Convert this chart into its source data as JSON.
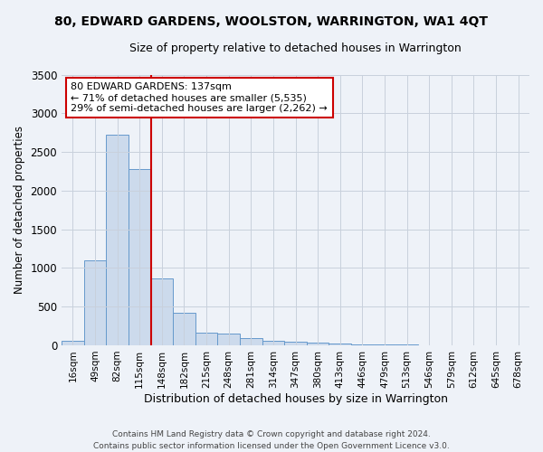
{
  "title": "80, EDWARD GARDENS, WOOLSTON, WARRINGTON, WA1 4QT",
  "subtitle": "Size of property relative to detached houses in Warrington",
  "xlabel": "Distribution of detached houses by size in Warrington",
  "ylabel": "Number of detached properties",
  "categories": [
    "16sqm",
    "49sqm",
    "82sqm",
    "115sqm",
    "148sqm",
    "182sqm",
    "215sqm",
    "248sqm",
    "281sqm",
    "314sqm",
    "347sqm",
    "380sqm",
    "413sqm",
    "446sqm",
    "479sqm",
    "513sqm",
    "546sqm",
    "579sqm",
    "612sqm",
    "645sqm",
    "678sqm"
  ],
  "values": [
    55,
    1100,
    2720,
    2280,
    870,
    420,
    160,
    155,
    90,
    60,
    45,
    40,
    25,
    15,
    10,
    8,
    5,
    5,
    3,
    3,
    3
  ],
  "bar_color": "#ccdaec",
  "bar_edge_color": "#6699cc",
  "property_line_color": "#cc0000",
  "annotation_text": "80 EDWARD GARDENS: 137sqm\n← 71% of detached houses are smaller (5,535)\n29% of semi-detached houses are larger (2,262) →",
  "annotation_box_color": "#cc0000",
  "ylim": [
    0,
    3500
  ],
  "yticks": [
    0,
    500,
    1000,
    1500,
    2000,
    2500,
    3000,
    3500
  ],
  "footnote": "Contains HM Land Registry data © Crown copyright and database right 2024.\nContains public sector information licensed under the Open Government Licence v3.0.",
  "bg_color": "#eef2f8",
  "plot_bg_color": "#eef2f8",
  "grid_color": "#c8d0dc",
  "property_bar_index": 4,
  "title_fontsize": 10,
  "subtitle_fontsize": 9
}
